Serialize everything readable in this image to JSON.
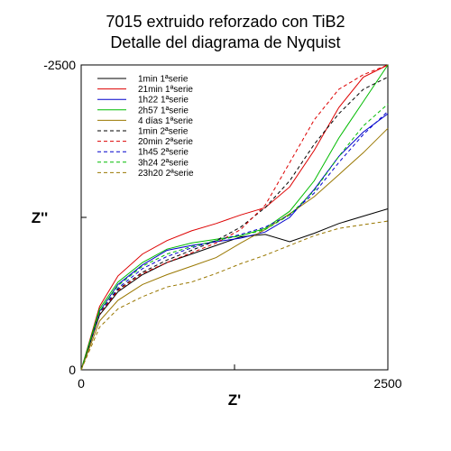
{
  "chart_data": {
    "type": "line",
    "title_line1": "7015 extruido reforzado con TiB2",
    "title_line2": "Detalle del diagrama de Nyquist",
    "xlabel": "Z'",
    "ylabel": "Z''",
    "xlim": [
      0,
      2500
    ],
    "ylim": [
      0,
      -2500
    ],
    "x_tick_labels": [
      "0",
      "2500"
    ],
    "y_tick_labels": [
      "0",
      "-2500"
    ],
    "grid": false,
    "legend_position": "top-left",
    "series": [
      {
        "name": "1min 1ªserie",
        "color": "#000000",
        "dash": "solid",
        "x": [
          0,
          150,
          300,
          500,
          700,
          900,
          1100,
          1300,
          1500,
          1700,
          1900,
          2100,
          2300,
          2500
        ],
        "y": [
          0,
          -450,
          -640,
          -780,
          -880,
          -950,
          -1020,
          -1090,
          -1110,
          -1050,
          -1120,
          -1200,
          -1260,
          -1320
        ]
      },
      {
        "name": "21min 1ªserie",
        "color": "#dd0000",
        "dash": "solid",
        "x": [
          0,
          150,
          300,
          500,
          700,
          900,
          1100,
          1300,
          1500,
          1700,
          1900,
          2100,
          2300,
          2500
        ],
        "y": [
          0,
          -520,
          -770,
          -950,
          -1060,
          -1140,
          -1200,
          -1270,
          -1330,
          -1500,
          -1800,
          -2150,
          -2400,
          -2500
        ]
      },
      {
        "name": "1h22 1ªserie",
        "color": "#0000cc",
        "dash": "solid",
        "x": [
          0,
          150,
          300,
          500,
          700,
          900,
          1100,
          1300,
          1500,
          1700,
          1900,
          2100,
          2300,
          2500
        ],
        "y": [
          0,
          -480,
          -700,
          -860,
          -980,
          -1020,
          -1050,
          -1080,
          -1130,
          -1250,
          -1480,
          -1750,
          -1950,
          -2100
        ]
      },
      {
        "name": "2h57 1ªserie",
        "color": "#00bb00",
        "dash": "solid",
        "x": [
          0,
          150,
          300,
          500,
          700,
          900,
          1100,
          1300,
          1500,
          1700,
          1900,
          2100,
          2300,
          2500
        ],
        "y": [
          0,
          -500,
          -720,
          -880,
          -990,
          -1040,
          -1070,
          -1100,
          -1160,
          -1300,
          -1550,
          -1900,
          -2200,
          -2500
        ]
      },
      {
        "name": "4 días 1ªserie",
        "color": "#997700",
        "dash": "solid",
        "x": [
          0,
          150,
          300,
          500,
          700,
          900,
          1100,
          1300,
          1500,
          1700,
          1900,
          2100,
          2300,
          2500
        ],
        "y": [
          0,
          -400,
          -570,
          -700,
          -780,
          -850,
          -920,
          -1040,
          -1150,
          -1280,
          -1420,
          -1600,
          -1780,
          -1980
        ]
      },
      {
        "name": "1min 2ªserie",
        "color": "#000000",
        "dash": "dashed",
        "x": [
          0,
          150,
          300,
          500,
          700,
          900,
          1100,
          1300,
          1500,
          1700,
          1900,
          2100,
          2300,
          2500
        ],
        "y": [
          0,
          -470,
          -660,
          -800,
          -900,
          -980,
          -1060,
          -1170,
          -1330,
          -1550,
          -1850,
          -2100,
          -2300,
          -2400
        ]
      },
      {
        "name": "20min 2ªserie",
        "color": "#dd0000",
        "dash": "dashed",
        "x": [
          0,
          150,
          300,
          500,
          700,
          900,
          1100,
          1300,
          1500,
          1700,
          1900,
          2100,
          2300,
          2500
        ],
        "y": [
          0,
          -460,
          -650,
          -790,
          -880,
          -960,
          -1040,
          -1150,
          -1350,
          -1700,
          -2050,
          -2300,
          -2420,
          -2500
        ]
      },
      {
        "name": "1h45 2ªserie",
        "color": "#0000cc",
        "dash": "dashed",
        "x": [
          0,
          150,
          300,
          500,
          700,
          900,
          1100,
          1300,
          1500,
          1700,
          1900,
          2100,
          2300,
          2500
        ],
        "y": [
          0,
          -470,
          -670,
          -830,
          -930,
          -1000,
          -1060,
          -1110,
          -1170,
          -1270,
          -1450,
          -1700,
          -1930,
          -2120
        ]
      },
      {
        "name": "3h24 2ªserie",
        "color": "#00bb00",
        "dash": "dashed",
        "x": [
          0,
          150,
          300,
          500,
          700,
          900,
          1100,
          1300,
          1500,
          1700,
          1900,
          2100,
          2300,
          2500
        ],
        "y": [
          0,
          -480,
          -690,
          -850,
          -950,
          -1010,
          -1060,
          -1100,
          -1150,
          -1270,
          -1470,
          -1750,
          -2000,
          -2180
        ]
      },
      {
        "name": "23h20 2ªserie",
        "color": "#997700",
        "dash": "dashed",
        "x": [
          0,
          150,
          300,
          500,
          700,
          900,
          1100,
          1300,
          1500,
          1700,
          1900,
          2100,
          2300,
          2500
        ],
        "y": [
          0,
          -350,
          -500,
          -600,
          -680,
          -720,
          -790,
          -870,
          -940,
          -1020,
          -1100,
          -1160,
          -1190,
          -1220
        ]
      }
    ]
  }
}
